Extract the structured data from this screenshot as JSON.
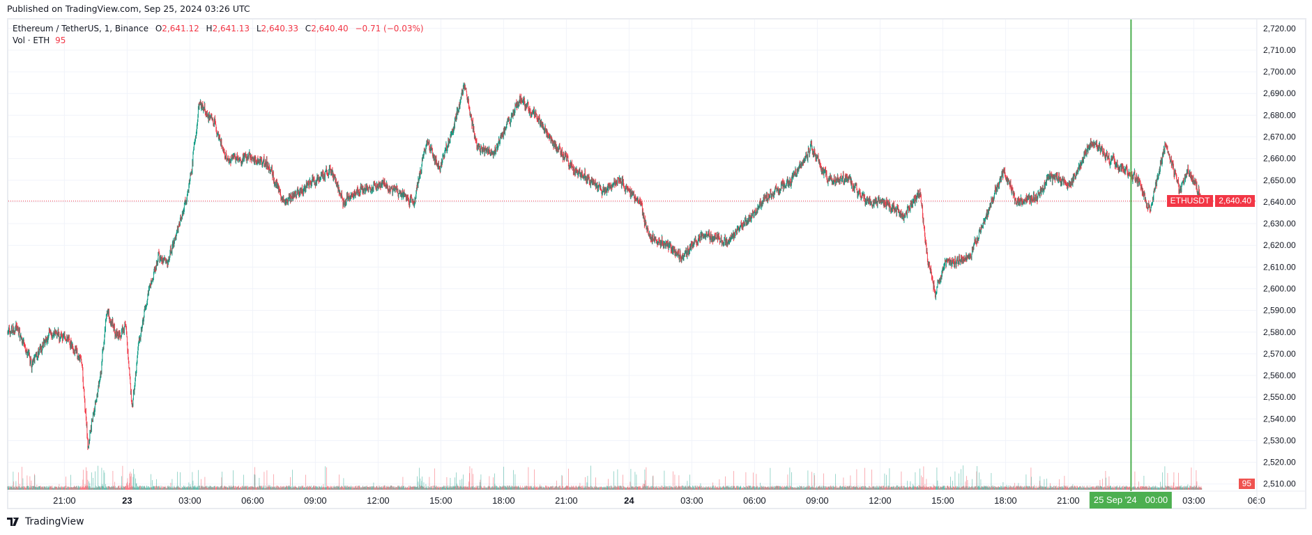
{
  "published": "Published on TradingView.com, Sep 25, 2024 03:26 UTC",
  "legend": {
    "symbol": "Ethereum / TetherUS, 1, Binance",
    "o_label": "O",
    "o": "2,641.12",
    "h_label": "H",
    "h": "2,641.13",
    "l_label": "L",
    "l": "2,640.33",
    "c_label": "C",
    "c": "2,640.40",
    "change": "−0.71 (−0.03%)",
    "vol_label": "Vol · ETH",
    "vol": "95"
  },
  "price_tag": {
    "symbol": "ETHUSDT",
    "price": "2,640.40"
  },
  "volume_tag": "95",
  "crosshair_label": {
    "date": "25 Sep '24",
    "time": "00:00"
  },
  "footer_brand": "TradingView",
  "colors": {
    "up": "#089981",
    "down": "#f23645",
    "crosshair": "#4caf50",
    "grid": "#f0f3fa"
  },
  "chart_data": {
    "type": "candlestick",
    "symbol": "ETHUSDT",
    "interval": "1m",
    "last_price": 2640.4,
    "ylim": [
      2505,
      2725
    ],
    "y_ticks": [
      "2,720.00",
      "2,710.00",
      "2,700.00",
      "2,690.00",
      "2,680.00",
      "2,670.00",
      "2,660.00",
      "2,650.00",
      "2,640.00",
      "2,630.00",
      "2,620.00",
      "2,610.00",
      "2,600.00",
      "2,590.00",
      "2,580.00",
      "2,570.00",
      "2,560.00",
      "2,550.00",
      "2,540.00",
      "2,530.00",
      "2,520.00",
      "2,510.00"
    ],
    "x_ticks": [
      "21:00",
      "23",
      "03:00",
      "06:00",
      "09:00",
      "12:00",
      "15:00",
      "18:00",
      "21:00",
      "24",
      "03:00",
      "06:00",
      "09:00",
      "12:00",
      "15:00",
      "18:00",
      "21:00",
      "00:00",
      "03:00",
      "06:0"
    ],
    "grid": true,
    "price_path": [
      [
        "2024-09-22 18:17",
        2580
      ],
      [
        "2024-09-22 18:43",
        2582
      ],
      [
        "2024-09-22 19:26",
        2565
      ],
      [
        "2024-09-22 20:19",
        2580
      ],
      [
        "2024-09-22 21:07",
        2577
      ],
      [
        "2024-09-22 21:48",
        2567
      ],
      [
        "2024-09-22 22:07",
        2528
      ],
      [
        "2024-09-22 22:43",
        2560
      ],
      [
        "2024-09-22 23:02",
        2590
      ],
      [
        "2024-09-22 23:31",
        2578
      ],
      [
        "2024-09-22 23:55",
        2583
      ],
      [
        "2024-09-23 00:14",
        2545
      ],
      [
        "2024-09-23 00:31",
        2572
      ],
      [
        "2024-09-23 01:02",
        2600
      ],
      [
        "2024-09-23 01:31",
        2615
      ],
      [
        "2024-09-23 01:55",
        2612
      ],
      [
        "2024-09-23 02:24",
        2627
      ],
      [
        "2024-09-23 02:55",
        2645
      ],
      [
        "2024-09-23 03:12",
        2665
      ],
      [
        "2024-09-23 03:26",
        2685
      ],
      [
        "2024-09-23 04:07",
        2678
      ],
      [
        "2024-09-23 04:43",
        2660
      ],
      [
        "2024-09-23 05:55",
        2660
      ],
      [
        "2024-09-23 06:43",
        2657
      ],
      [
        "2024-09-23 07:31",
        2640
      ],
      [
        "2024-09-23 08:43",
        2648
      ],
      [
        "2024-09-23 09:43",
        2655
      ],
      [
        "2024-09-23 10:19",
        2640
      ],
      [
        "2024-09-23 11:07",
        2646
      ],
      [
        "2024-09-23 12:19",
        2648
      ],
      [
        "2024-09-23 13:43",
        2640
      ],
      [
        "2024-09-23 14:19",
        2668
      ],
      [
        "2024-09-23 14:55",
        2655
      ],
      [
        "2024-09-23 15:31",
        2672
      ],
      [
        "2024-09-23 16:07",
        2695
      ],
      [
        "2024-09-23 16:43",
        2665
      ],
      [
        "2024-09-23 17:31",
        2662
      ],
      [
        "2024-09-23 18:07",
        2675
      ],
      [
        "2024-09-23 18:48",
        2688
      ],
      [
        "2024-09-23 19:31",
        2680
      ],
      [
        "2024-09-23 20:19",
        2668
      ],
      [
        "2024-09-23 21:19",
        2655
      ],
      [
        "2024-09-23 21:55",
        2652
      ],
      [
        "2024-09-23 22:43",
        2645
      ],
      [
        "2024-09-23 23:31",
        2650
      ],
      [
        "2024-09-24 00:31",
        2640
      ],
      [
        "2024-09-24 00:55",
        2625
      ],
      [
        "2024-09-24 01:43",
        2620
      ],
      [
        "2024-09-24 02:31",
        2615
      ],
      [
        "2024-09-24 03:31",
        2625
      ],
      [
        "2024-09-24 04:43",
        2622
      ],
      [
        "2024-09-24 05:43",
        2632
      ],
      [
        "2024-09-24 06:31",
        2642
      ],
      [
        "2024-09-24 07:43",
        2650
      ],
      [
        "2024-09-24 08:43",
        2665
      ],
      [
        "2024-09-24 09:31",
        2650
      ],
      [
        "2024-09-24 10:31",
        2650
      ],
      [
        "2024-09-24 11:19",
        2640
      ],
      [
        "2024-09-24 12:19",
        2640
      ],
      [
        "2024-09-24 13:07",
        2633
      ],
      [
        "2024-09-24 13:55",
        2645
      ],
      [
        "2024-09-24 14:14",
        2615
      ],
      [
        "2024-09-24 14:38",
        2598
      ],
      [
        "2024-09-24 15:07",
        2612
      ],
      [
        "2024-09-24 16:19",
        2615
      ],
      [
        "2024-09-24 17:07",
        2635
      ],
      [
        "2024-09-24 17:55",
        2655
      ],
      [
        "2024-09-24 18:31",
        2640
      ],
      [
        "2024-09-24 19:31",
        2642
      ],
      [
        "2024-09-24 20:07",
        2652
      ],
      [
        "2024-09-24 21:07",
        2648
      ],
      [
        "2024-09-24 22:07",
        2668
      ],
      [
        "2024-09-24 22:55",
        2660
      ],
      [
        "2024-09-24 23:43",
        2655
      ],
      [
        "2024-09-25 00:19",
        2650
      ],
      [
        "2024-09-25 00:55",
        2636
      ],
      [
        "2024-09-25 01:38",
        2668
      ],
      [
        "2024-09-25 02:19",
        2645
      ],
      [
        "2024-09-25 02:43",
        2656
      ],
      [
        "2024-09-25 03:24",
        2640.4
      ]
    ],
    "last_volume": 95
  }
}
